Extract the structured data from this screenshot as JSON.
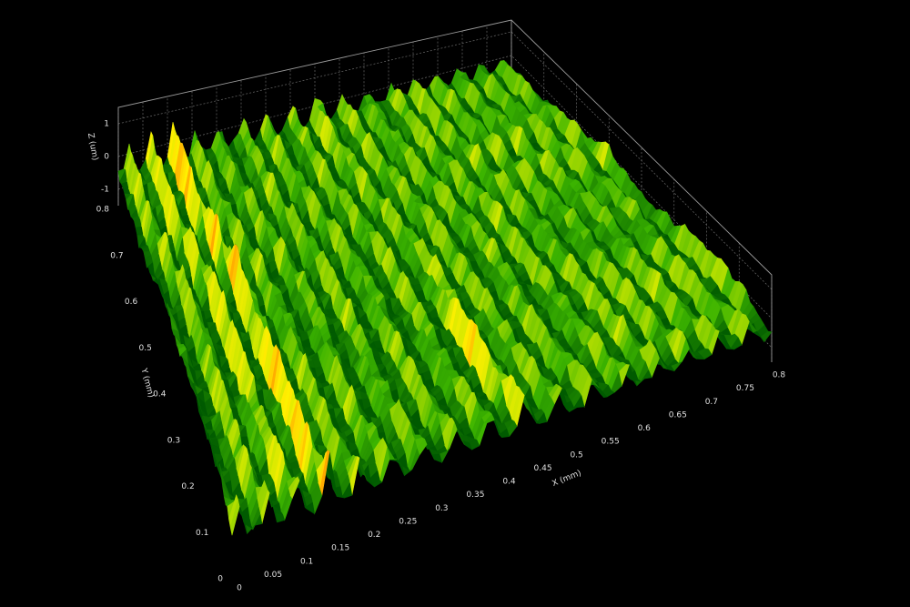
{
  "chart_data": {
    "type": "surface3d",
    "xlabel": "X (mm)",
    "ylabel": "Y (mm)",
    "zlabel": "Z (um)",
    "xlim": [
      0,
      0.8
    ],
    "ylim": [
      0,
      0.8
    ],
    "zlim": [
      -1.5,
      1.5
    ],
    "xticks": [
      0,
      0.05,
      0.1,
      0.15,
      0.2,
      0.25,
      0.3,
      0.35,
      0.4,
      0.45,
      0.5,
      0.55,
      0.6,
      0.65,
      0.7,
      0.75,
      0.8
    ],
    "yticks": [
      0,
      0.1,
      0.2,
      0.3,
      0.4,
      0.5,
      0.6,
      0.7,
      0.8
    ],
    "zticks": [
      -1,
      0,
      1
    ],
    "grid": true,
    "colormap": [
      "#005a00",
      "#3cb400",
      "#c8e600",
      "#fff000",
      "#ff9600",
      "#ff1e00"
    ]
  }
}
